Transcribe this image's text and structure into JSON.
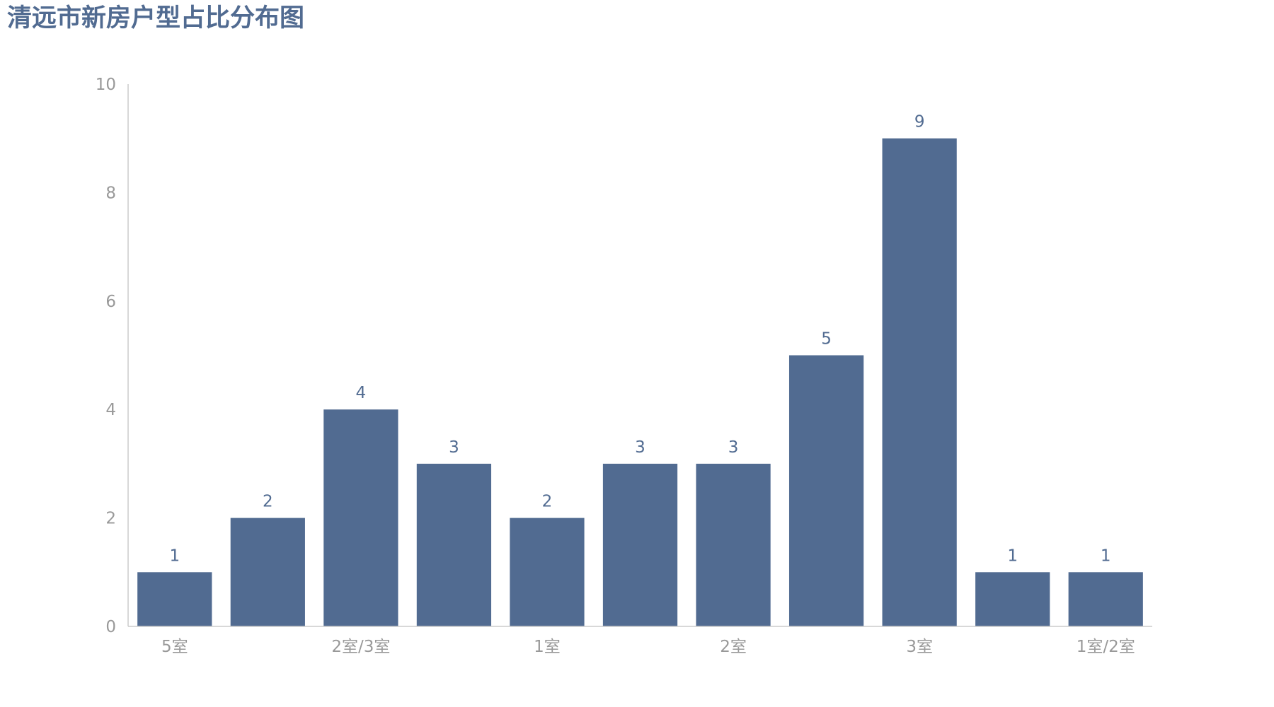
{
  "chart_data": {
    "type": "bar",
    "title": "清远市新房户型占比分布图",
    "categories": [
      "5室",
      "",
      "2室/3室",
      "",
      "1室",
      "",
      "2室",
      "",
      "3室",
      "",
      "1室/2室"
    ],
    "values": [
      1,
      2,
      4,
      3,
      2,
      3,
      3,
      5,
      9,
      1,
      1
    ],
    "xlabel": "",
    "ylabel": "",
    "ylim": [
      0,
      10
    ],
    "yticks": [
      0,
      2,
      4,
      6,
      8,
      10
    ],
    "grid": false,
    "legend": "none",
    "bar_color": "#516b91",
    "axis_color": "#cccccc",
    "label_color": "#999999"
  }
}
